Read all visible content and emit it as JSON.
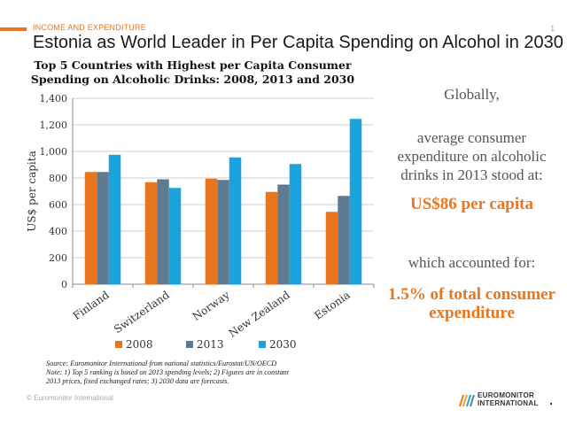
{
  "header": {
    "section_label": "INCOME AND EXPENDITURE",
    "title": "Estonia as World Leader in Per Capita Spending on Alcohol in 2030",
    "page_number": "1"
  },
  "chart_data": {
    "type": "bar",
    "title_line1": "Top 5 Countries with Highest per Capita Consumer",
    "title_line2": "Spending on Alcoholic Drinks: 2008, 2013 and 2030",
    "ylabel": "US$ per capita",
    "ylim": [
      0,
      1400
    ],
    "yticks": [
      "0",
      "200",
      "400",
      "600",
      "800",
      "1,000",
      "1,200",
      "1,400"
    ],
    "categories": [
      "Finland",
      "Switzerland",
      "Norway",
      "New Zealand",
      "Estonia"
    ],
    "series": [
      {
        "name": "2008",
        "color": "#E8761E",
        "values": [
          845,
          768,
          795,
          695,
          545
        ]
      },
      {
        "name": "2013",
        "color": "#5F7A93",
        "values": [
          845,
          790,
          785,
          750,
          665
        ]
      },
      {
        "name": "2030",
        "color": "#1AA3DC",
        "values": [
          975,
          725,
          955,
          905,
          1245
        ]
      }
    ]
  },
  "sidebar": {
    "line1": "Globally,",
    "line2a": "average consumer",
    "line2b": "expenditure on alcoholic",
    "line2c": "drinks in 2013 stood at:",
    "highlight1": "US$86 per capita",
    "line3": "which accounted for:",
    "highlight2a": "1.5% of total consumer",
    "highlight2b": "expenditure"
  },
  "source": {
    "line1": "Source: Euromonitor International from national statistics/Eurostat/UN/OECD",
    "line2": "Note: 1) Top 5 ranking is based on 2013 spending levels; 2) Figures are in constant",
    "line3": "2013 prices, fixed exchanged rates; 3) 2030 data are forecasts."
  },
  "footer": {
    "copyright": "© Euromonitor International",
    "logo_line1": "EUROMONITOR",
    "logo_line2": "INTERNATIONAL"
  }
}
